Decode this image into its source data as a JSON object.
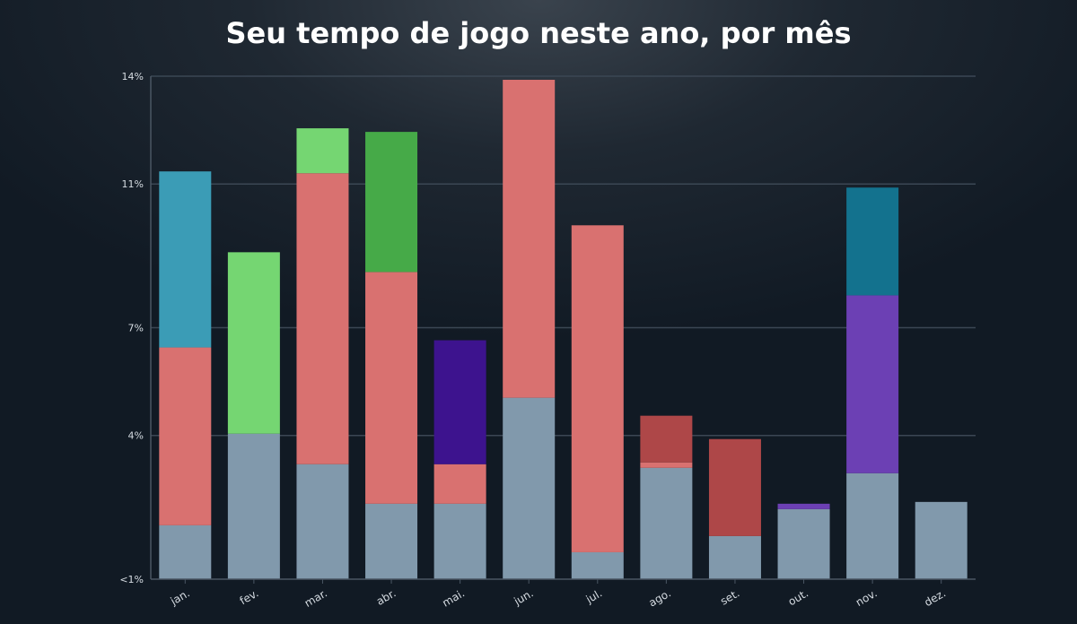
{
  "chart_data": {
    "type": "bar",
    "stacked": true,
    "title": "Seu tempo de jogo neste ano, por mês",
    "xlabel": "",
    "ylabel": "",
    "categories": [
      "jan.",
      "fev.",
      "mar.",
      "abr.",
      "mai.",
      "jun.",
      "jul.",
      "ago.",
      "set.",
      "out.",
      "nov.",
      "dez."
    ],
    "y_tick_labels": [
      "<1%",
      "4%",
      "7%",
      "11%",
      "14%"
    ],
    "y_tick_values": [
      0,
      4,
      7,
      11,
      14
    ],
    "ylim": [
      0,
      14
    ],
    "grid": true,
    "legend": "none",
    "series": [
      {
        "color": "#8199ac",
        "values": [
          1.5,
          4.05,
          3.2,
          2.1,
          2.1,
          5.05,
          0.75,
          3.1,
          1.2,
          1.95,
          2.95,
          2.15
        ]
      },
      {
        "color": "#d97170",
        "values": [
          4.95,
          0,
          8.1,
          6.45,
          1.1,
          8.85,
          9.1,
          0.15,
          0,
          0,
          0,
          0
        ]
      },
      {
        "color": "#3b9cb6",
        "values": [
          4.9,
          0,
          0,
          0,
          0,
          0,
          0,
          0,
          0,
          0,
          0,
          0
        ]
      },
      {
        "color": "#75d672",
        "values": [
          0,
          5.05,
          1.25,
          0,
          0,
          0,
          0,
          0,
          0,
          0,
          0,
          0
        ]
      },
      {
        "color": "#46aa48",
        "values": [
          0,
          0,
          0,
          3.9,
          0,
          0,
          0,
          0,
          0,
          0,
          0,
          0
        ]
      },
      {
        "color": "#3d138e",
        "values": [
          0,
          0,
          0,
          0,
          3.45,
          0,
          0,
          0,
          0,
          0,
          0,
          0
        ]
      },
      {
        "color": "#ae4748",
        "values": [
          0,
          0,
          0,
          0,
          0,
          0,
          0,
          1.3,
          2.7,
          0,
          0,
          0
        ]
      },
      {
        "color": "#6c40b4",
        "values": [
          0,
          0,
          0,
          0,
          0,
          0,
          0,
          0,
          0,
          0.15,
          4.95,
          0
        ]
      },
      {
        "color": "#13728e",
        "values": [
          0,
          0,
          0,
          0,
          0,
          0,
          0,
          0,
          0,
          0,
          3.0,
          0
        ]
      }
    ]
  }
}
